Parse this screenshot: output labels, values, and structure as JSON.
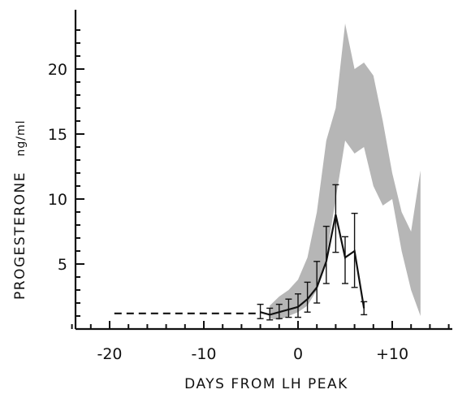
{
  "chart_data": {
    "type": "line",
    "title": "",
    "xlabel": "DAYS FROM LH PEAK",
    "ylabel": "PROGESTERONE",
    "yunit": "ng/ml",
    "xlim": [
      -24,
      17
    ],
    "ylim": [
      0,
      24
    ],
    "x_ticks": [
      -20,
      -10,
      0,
      10
    ],
    "x_tick_labels": [
      "-20",
      "-10",
      "0",
      "+10"
    ],
    "y_ticks": [
      5,
      10,
      15,
      20
    ],
    "y_tick_labels": [
      "5",
      "10",
      "15",
      "20"
    ],
    "grid": false,
    "reference_band": {
      "x": [
        -3,
        -2,
        -1,
        0,
        1,
        2,
        3,
        4,
        5,
        6,
        7,
        8,
        9,
        10,
        11,
        12,
        13
      ],
      "lower": [
        0.8,
        0.7,
        1.0,
        1.3,
        1.8,
        3.0,
        5.5,
        10.0,
        14.5,
        13.5,
        14.0,
        11.0,
        9.5,
        10.0,
        6.0,
        3.0,
        1.0
      ],
      "upper": [
        1.8,
        2.5,
        3.0,
        3.8,
        5.5,
        9.0,
        14.5,
        17.0,
        23.5,
        20.0,
        20.5,
        19.5,
        16.0,
        12.0,
        9.0,
        7.5,
        12.2
      ]
    },
    "series": [
      {
        "x": [
          -4,
          -3,
          -2,
          -1,
          0,
          1,
          2,
          3,
          4,
          5,
          6,
          7
        ],
        "values": [
          1.3,
          1.1,
          1.3,
          1.5,
          1.7,
          2.3,
          3.2,
          5.2,
          8.8,
          5.5,
          6.0,
          1.6
        ],
        "err_upper": [
          0.6,
          0.5,
          0.6,
          0.8,
          1.0,
          1.3,
          2.0,
          2.7,
          2.3,
          1.6,
          2.9,
          0.5
        ],
        "err_lower": [
          0.5,
          0.4,
          0.5,
          0.6,
          0.8,
          1.0,
          1.2,
          1.7,
          2.9,
          2.0,
          2.8,
          0.5
        ]
      }
    ],
    "dashed_baseline": {
      "x": [
        -19.5,
        -4
      ],
      "y": 1.2
    }
  }
}
